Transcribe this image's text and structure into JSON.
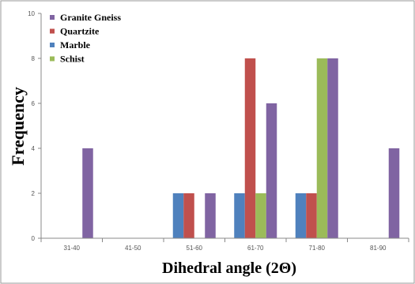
{
  "chart_data": {
    "type": "bar",
    "categories": [
      "31-40",
      "41-50",
      "51-60",
      "61-70",
      "71-80",
      "81-90"
    ],
    "series": [
      {
        "name": "Marble",
        "color": "#4f81bd",
        "values": [
          0,
          0,
          2,
          2,
          2,
          0
        ]
      },
      {
        "name": "Quartzite",
        "color": "#c0504d",
        "values": [
          0,
          0,
          2,
          8,
          2,
          0
        ]
      },
      {
        "name": "Schist",
        "color": "#9bbb59",
        "values": [
          0,
          0,
          0,
          2,
          8,
          0
        ]
      },
      {
        "name": "Granite Gneiss",
        "color": "#8064a2",
        "values": [
          4,
          0,
          2,
          6,
          8,
          4
        ]
      }
    ],
    "legend_order": [
      "Granite Gneiss",
      "Quartzite",
      "Marble",
      "Schist"
    ],
    "xlabel": "Dihedral angle (2Θ)",
    "ylabel": "Frequency",
    "ylim": [
      0,
      10
    ],
    "yticks": [
      0,
      2,
      4,
      6,
      8,
      10
    ],
    "grid": false,
    "legend_position": "top-left"
  }
}
